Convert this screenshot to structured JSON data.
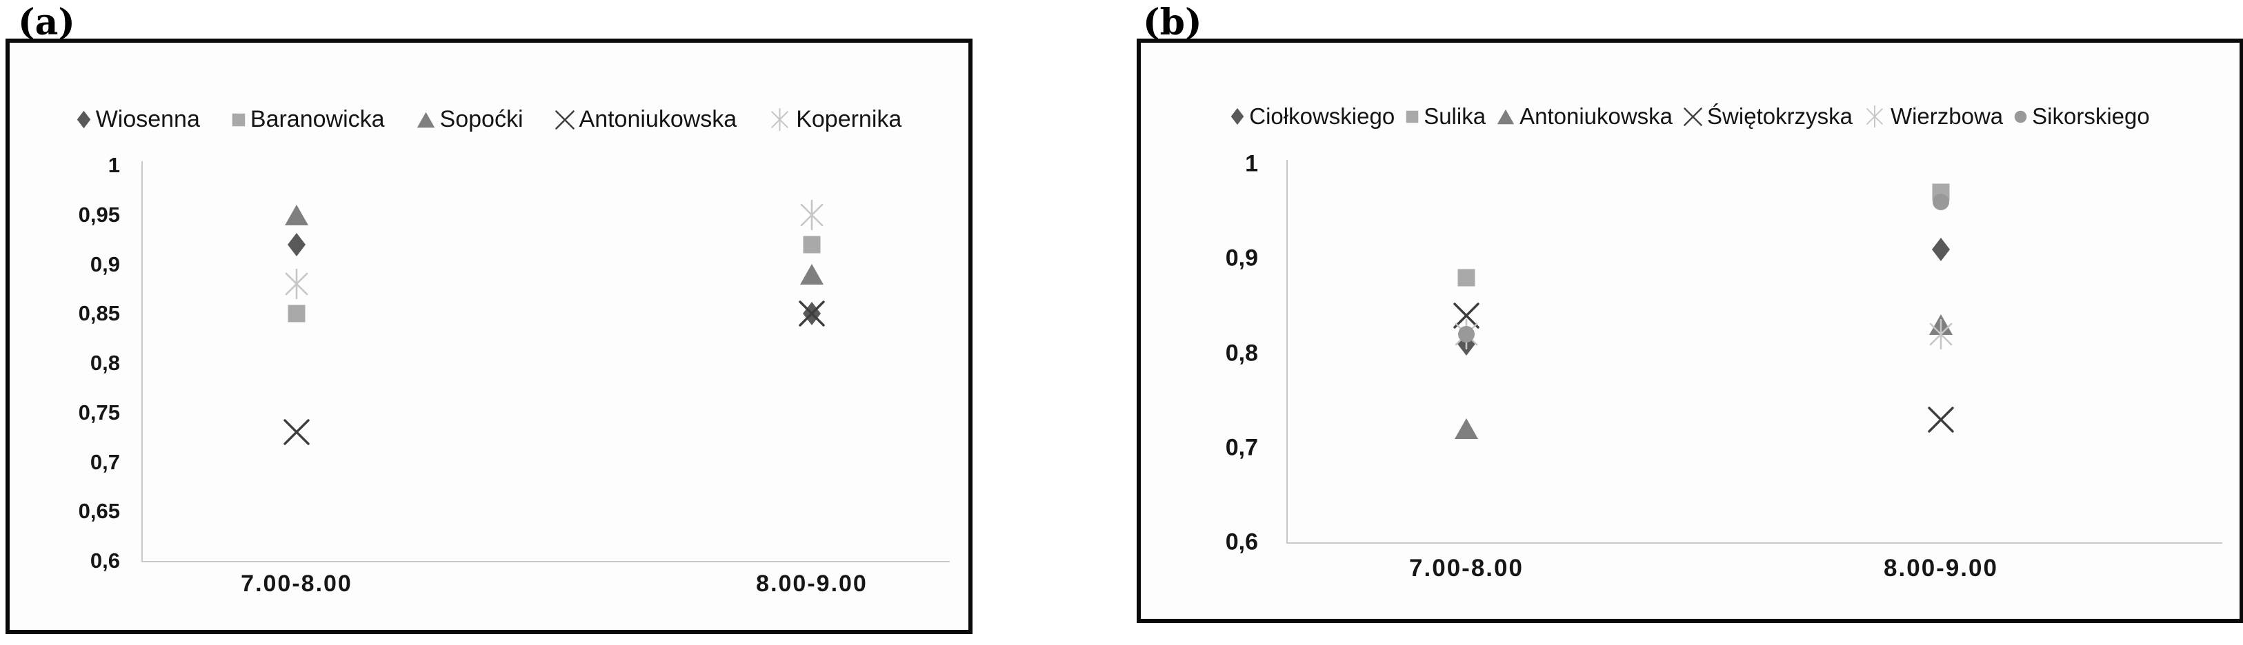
{
  "page": {
    "background": "#ffffff"
  },
  "chart_data": [
    {
      "type": "scatter",
      "panel_label": "(a)",
      "title": "",
      "xlabel": "",
      "ylabel": "",
      "grid": false,
      "legend_position": "top",
      "categories": [
        "7.00-8.00",
        "8.00-9.00"
      ],
      "ylim": [
        0.6,
        1.0
      ],
      "y_tick_labels": [
        "1",
        "0,95",
        "0,9",
        "0,85",
        "0,8",
        "0,75",
        "0,7",
        "0,65",
        "0,6"
      ],
      "series": [
        {
          "name": "Wiosenna",
          "marker": "diamond",
          "color": "#595959",
          "values": [
            0.92,
            0.85
          ]
        },
        {
          "name": "Baranowicka",
          "marker": "square",
          "color": "#a9a9a9",
          "values": [
            0.85,
            0.92
          ]
        },
        {
          "name": "Sopoćki",
          "marker": "triangle",
          "color": "#7f7f7f",
          "values": [
            0.95,
            0.89
          ]
        },
        {
          "name": "Antoniukowska",
          "marker": "x",
          "color": "#3d3d3d",
          "values": [
            0.73,
            0.85
          ]
        },
        {
          "name": "Kopernika",
          "marker": "asterisk",
          "color": "#c6c6c6",
          "values": [
            0.88,
            0.95
          ]
        }
      ]
    },
    {
      "type": "scatter",
      "panel_label": "(b)",
      "title": "",
      "xlabel": "",
      "ylabel": "",
      "grid": false,
      "legend_position": "top",
      "categories": [
        "7.00-8.00",
        "8.00-9.00"
      ],
      "ylim": [
        0.6,
        1.0
      ],
      "y_tick_labels": [
        "1",
        "0,9",
        "0,8",
        "0,7",
        "0,6"
      ],
      "series": [
        {
          "name": "Ciołkowskiego",
          "marker": "diamond",
          "color": "#595959",
          "values": [
            0.81,
            0.91
          ]
        },
        {
          "name": "Sulika",
          "marker": "square",
          "color": "#a9a9a9",
          "values": [
            0.88,
            0.97
          ]
        },
        {
          "name": "Antoniukowska",
          "marker": "triangle",
          "color": "#7f7f7f",
          "values": [
            0.72,
            0.83
          ]
        },
        {
          "name": "Świętokrzyska",
          "marker": "x",
          "color": "#3d3d3d",
          "values": [
            0.84,
            0.73
          ]
        },
        {
          "name": "Wierzbowa",
          "marker": "asterisk",
          "color": "#c6c6c6",
          "values": [
            0.82,
            0.82
          ]
        },
        {
          "name": "Sikorskiego",
          "marker": "circle",
          "color": "#999999",
          "values": [
            0.82,
            0.96
          ]
        }
      ]
    }
  ]
}
